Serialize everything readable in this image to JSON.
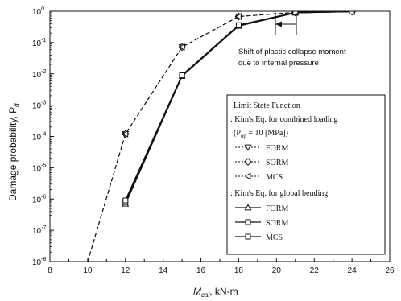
{
  "chart_data": {
    "type": "line",
    "title": "",
    "xlabel": "M_cal, kN-m",
    "xlabel_main": "M",
    "xlabel_sub": "cal",
    "xlabel_unit": ", kN-m",
    "ylabel": "Damage probability, P_d",
    "ylabel_main": "Damage probability, P",
    "ylabel_sub": "d",
    "xlim": [
      8,
      26
    ],
    "ylim_log10": [
      -8,
      0
    ],
    "y_scale": "log",
    "x_ticks": [
      "8",
      "10",
      "12",
      "14",
      "16",
      "18",
      "20",
      "22",
      "24",
      "26"
    ],
    "y_tick_exponents": [
      "0",
      "-1",
      "-2",
      "-3",
      "-4",
      "-5",
      "-6",
      "-7",
      "-8"
    ],
    "grid": false,
    "series": [
      {
        "name": "FORM",
        "group": "combined",
        "marker": "triangle-down",
        "dash": "dotted",
        "x": [
          10,
          12,
          15,
          18,
          21,
          24
        ],
        "y": [
          1e-08,
          0.00012,
          0.072,
          0.68,
          0.92,
          0.98
        ]
      },
      {
        "name": "SORM",
        "group": "combined",
        "marker": "diamond",
        "dash": "dotted",
        "x": [
          10,
          12,
          15,
          18,
          21,
          24
        ],
        "y": [
          1e-08,
          0.00012,
          0.072,
          0.68,
          0.92,
          0.98
        ]
      },
      {
        "name": "MCS",
        "group": "combined",
        "marker": "triangle-left",
        "dash": "dotted",
        "x": [
          10,
          12,
          15,
          18,
          21,
          24
        ],
        "y": [
          1e-08,
          0.00012,
          0.072,
          0.68,
          0.92,
          0.98
        ]
      },
      {
        "name": "FORM",
        "group": "global",
        "marker": "triangle-up",
        "dash": "solid",
        "x": [
          12,
          15,
          18,
          21,
          24
        ],
        "y": [
          7e-07,
          0.0085,
          0.34,
          0.9,
          0.98
        ]
      },
      {
        "name": "SORM",
        "group": "global",
        "marker": "square",
        "dash": "solid",
        "x": [
          12,
          15,
          18,
          21,
          24
        ],
        "y": [
          8e-07,
          0.0088,
          0.35,
          0.9,
          0.98
        ]
      },
      {
        "name": "MCS",
        "group": "global",
        "marker": "square",
        "dash": "solid",
        "x": [
          12,
          15,
          18,
          21,
          24
        ],
        "y": [
          9e-07,
          0.009,
          0.36,
          0.91,
          0.98
        ]
      }
    ],
    "annotation": {
      "line1": "Shift of plastic collapse moment",
      "line2": "due to internal pressure",
      "x_from": 21,
      "x_to": 19.7
    },
    "legend": {
      "placement": "right",
      "title": "Limit State Function",
      "combined_header": ": Kim's Eq. for combined loading",
      "pressure_main": "(P",
      "pressure_sub": "op",
      "pressure_rest": " = 10 [MPa])",
      "global_header": ": Kim's Eq. for global bending"
    }
  }
}
